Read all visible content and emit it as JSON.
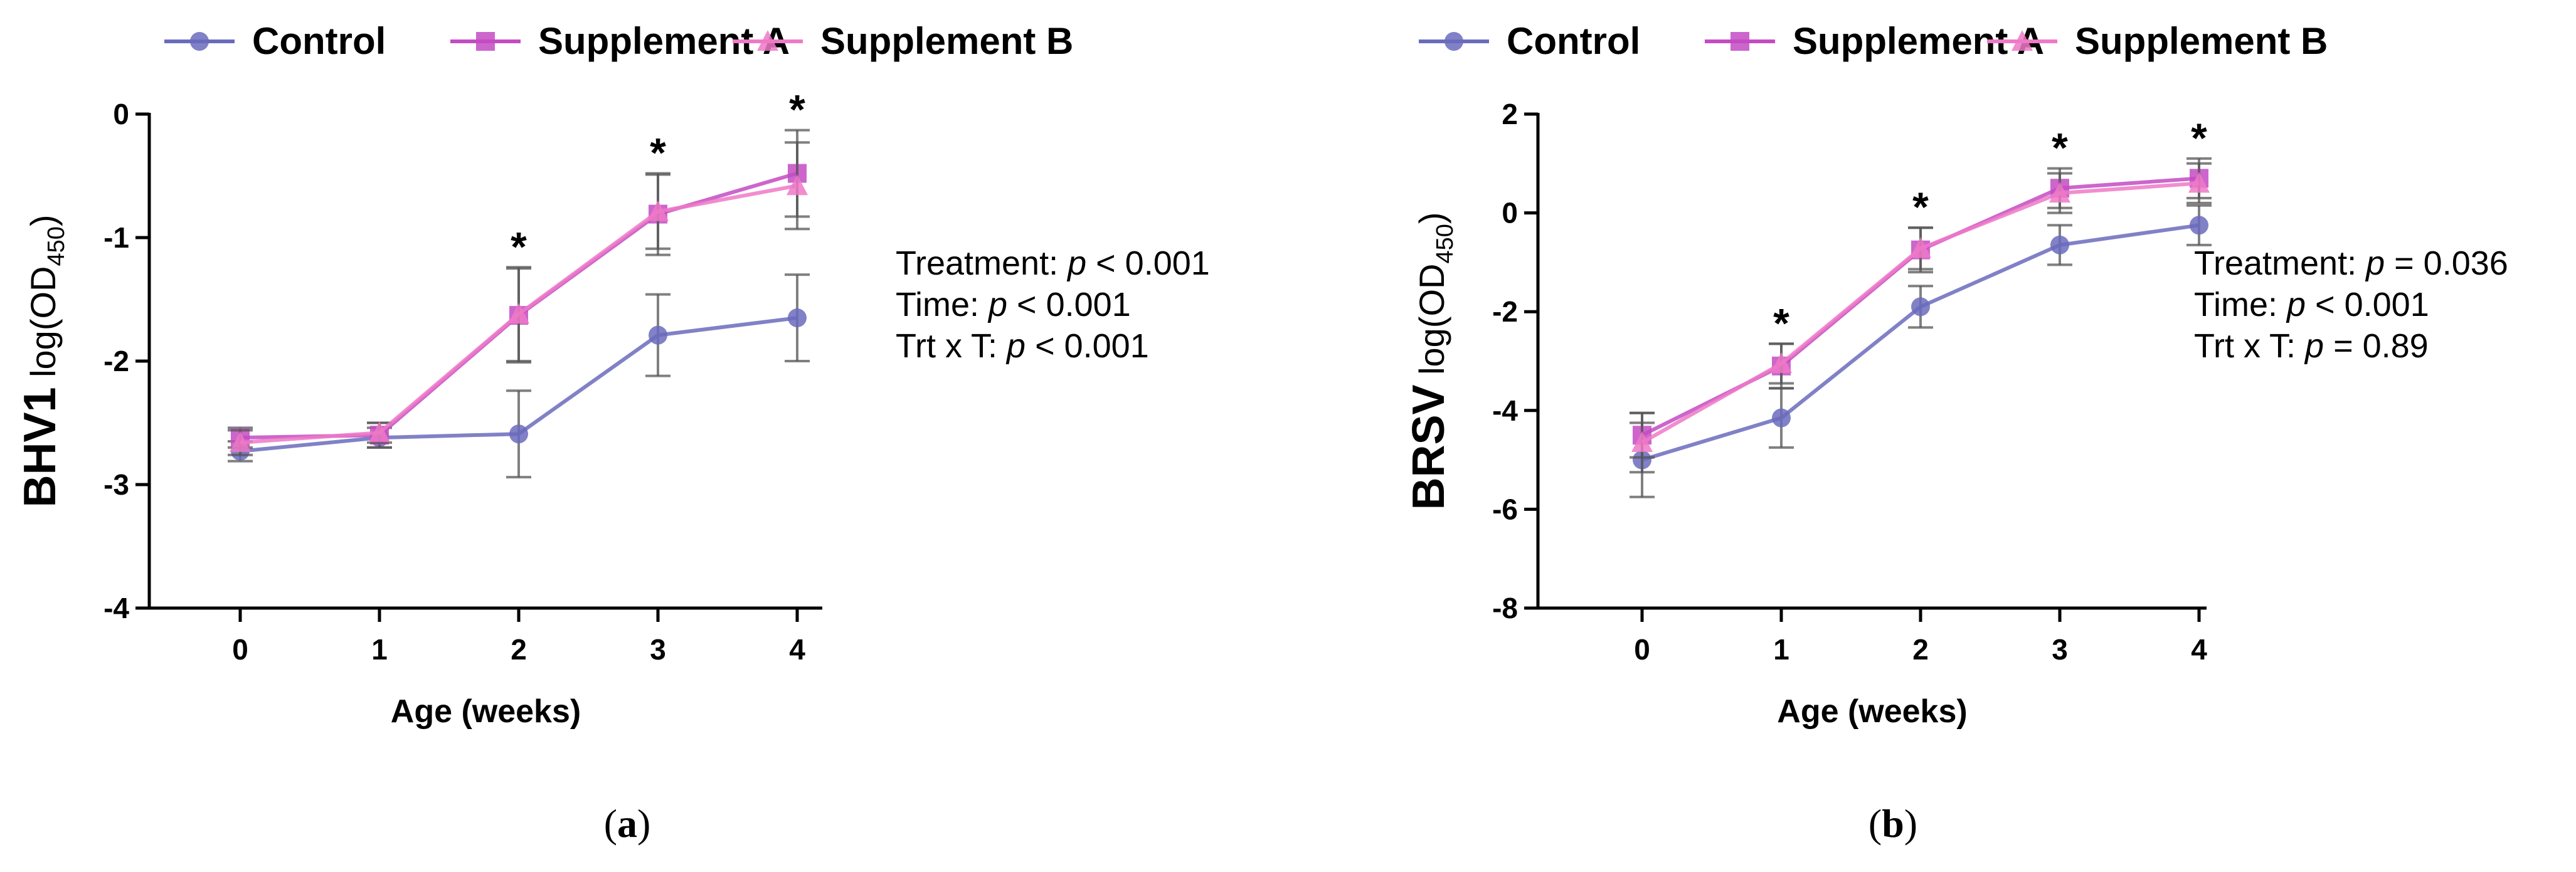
{
  "legend": [
    {
      "name": "Control",
      "color": "#6b6bbd",
      "marker": "circle"
    },
    {
      "name": "Supplement A",
      "color": "#c34bc3",
      "marker": "square"
    },
    {
      "name": "Supplement B",
      "color": "#ef79c7",
      "marker": "triangle"
    }
  ],
  "chart_data": [
    {
      "type": "line",
      "panel_label": "a",
      "xlabel": "Age (weeks)",
      "ylabel_main": "BHV1",
      "ylabel_unit": "log(OD",
      "ylabel_sub": "450",
      "ylabel_close": ")",
      "x": [
        0,
        1,
        2,
        3,
        4
      ],
      "xticks": [
        "0",
        "1",
        "2",
        "3",
        "4"
      ],
      "ylim": [
        -4,
        0
      ],
      "yticks": [
        "0",
        "-1",
        "-2",
        "-3",
        "-4"
      ],
      "ytick_values": [
        0,
        -1,
        -2,
        -3,
        -4
      ],
      "series": [
        {
          "name": "Control",
          "values": [
            -2.73,
            -2.62,
            -2.59,
            -1.79,
            -1.65
          ],
          "errors": [
            0.08,
            0.08,
            0.35,
            0.33,
            0.35
          ]
        },
        {
          "name": "Supplement A",
          "values": [
            -2.62,
            -2.6,
            -1.63,
            -0.81,
            -0.48
          ],
          "errors": [
            0.08,
            0.1,
            0.38,
            0.33,
            0.35
          ]
        },
        {
          "name": "Supplement B",
          "values": [
            -2.66,
            -2.58,
            -1.62,
            -0.79,
            -0.58
          ],
          "errors": [
            0.1,
            0.08,
            0.38,
            0.3,
            0.35
          ]
        }
      ],
      "significance": [
        {
          "x": 2,
          "label": "*"
        },
        {
          "x": 3,
          "label": "*"
        },
        {
          "x": 4,
          "label": "*"
        }
      ],
      "stats": [
        {
          "label": "Treatment: ",
          "p": "p",
          "value": " < 0.001"
        },
        {
          "label": "Time: ",
          "p": "p",
          "value": " < 0.001"
        },
        {
          "label": "Trt x T: ",
          "p": "p",
          "value": " < 0.001"
        }
      ]
    },
    {
      "type": "line",
      "panel_label": "b",
      "xlabel": "Age (weeks)",
      "ylabel_main": "BRSV",
      "ylabel_unit": "log(OD",
      "ylabel_sub": "450",
      "ylabel_close": ")",
      "x": [
        0,
        1,
        2,
        3,
        4
      ],
      "xticks": [
        "0",
        "1",
        "2",
        "3",
        "4"
      ],
      "ylim": [
        -8,
        2
      ],
      "yticks": [
        "2",
        "0",
        "-2",
        "-4",
        "-6",
        "-8"
      ],
      "ytick_values": [
        2,
        0,
        -2,
        -4,
        -6,
        -8
      ],
      "series": [
        {
          "name": "Control",
          "values": [
            -5.0,
            -4.15,
            -1.9,
            -0.65,
            -0.25
          ],
          "errors": [
            0.75,
            0.6,
            0.42,
            0.4,
            0.4
          ]
        },
        {
          "name": "Supplement A",
          "values": [
            -4.5,
            -3.1,
            -0.75,
            0.5,
            0.7
          ],
          "errors": [
            0.45,
            0.45,
            0.45,
            0.4,
            0.4
          ]
        },
        {
          "name": "Supplement B",
          "values": [
            -4.65,
            -3.05,
            -0.72,
            0.4,
            0.6
          ],
          "errors": [
            0.6,
            0.4,
            0.42,
            0.4,
            0.4
          ]
        }
      ],
      "significance": [
        {
          "x": 1,
          "label": "*"
        },
        {
          "x": 2,
          "label": "*"
        },
        {
          "x": 3,
          "label": "*"
        },
        {
          "x": 4,
          "label": "*"
        }
      ],
      "stats": [
        {
          "label": "Treatment: ",
          "p": "p",
          "value": " = 0.036"
        },
        {
          "label": "Time: ",
          "p": "p",
          "value": " < 0.001"
        },
        {
          "label": "Trt x T: ",
          "p": "p",
          "value": " = 0.89"
        }
      ]
    }
  ]
}
